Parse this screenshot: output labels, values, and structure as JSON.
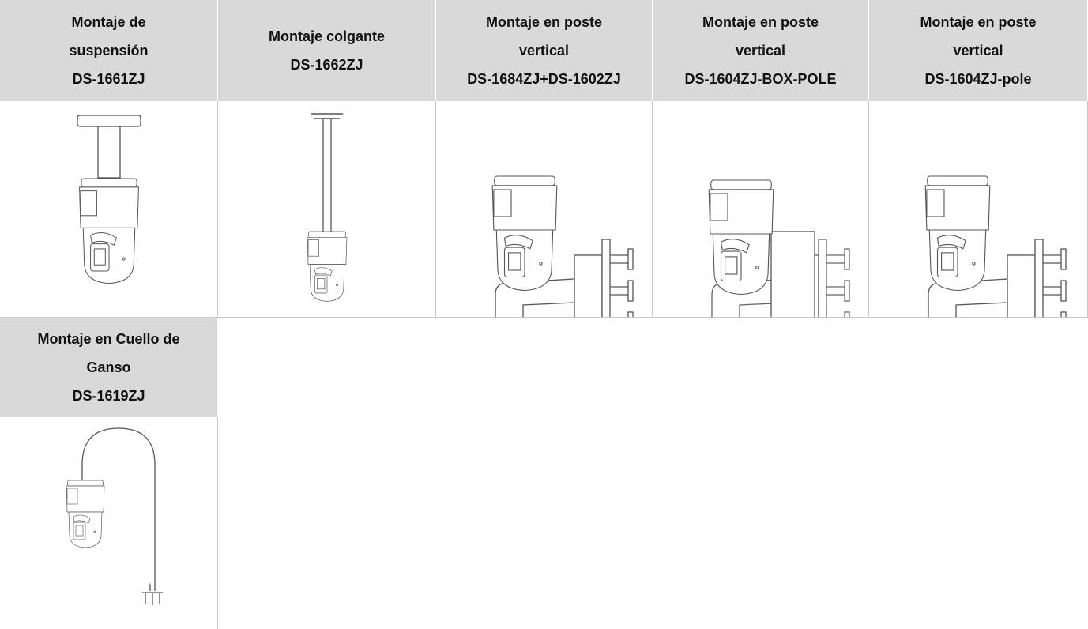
{
  "table": {
    "cells": [
      {
        "lines": [
          "Montaje de",
          "suspensión",
          "DS-1661ZJ"
        ]
      },
      {
        "lines": [
          "Montaje colgante",
          "DS-1662ZJ"
        ]
      },
      {
        "lines": [
          "Montaje en poste",
          "vertical",
          "DS-1684ZJ+DS-1602ZJ"
        ]
      },
      {
        "lines": [
          "Montaje en poste",
          "vertical",
          "DS-1604ZJ-BOX-POLE"
        ]
      },
      {
        "lines": [
          "Montaje en poste",
          "vertical",
          "DS-1604ZJ-pole"
        ]
      },
      {
        "lines": [
          "Montaje en Cuello de",
          "Ganso",
          "DS-1619ZJ"
        ]
      }
    ]
  }
}
